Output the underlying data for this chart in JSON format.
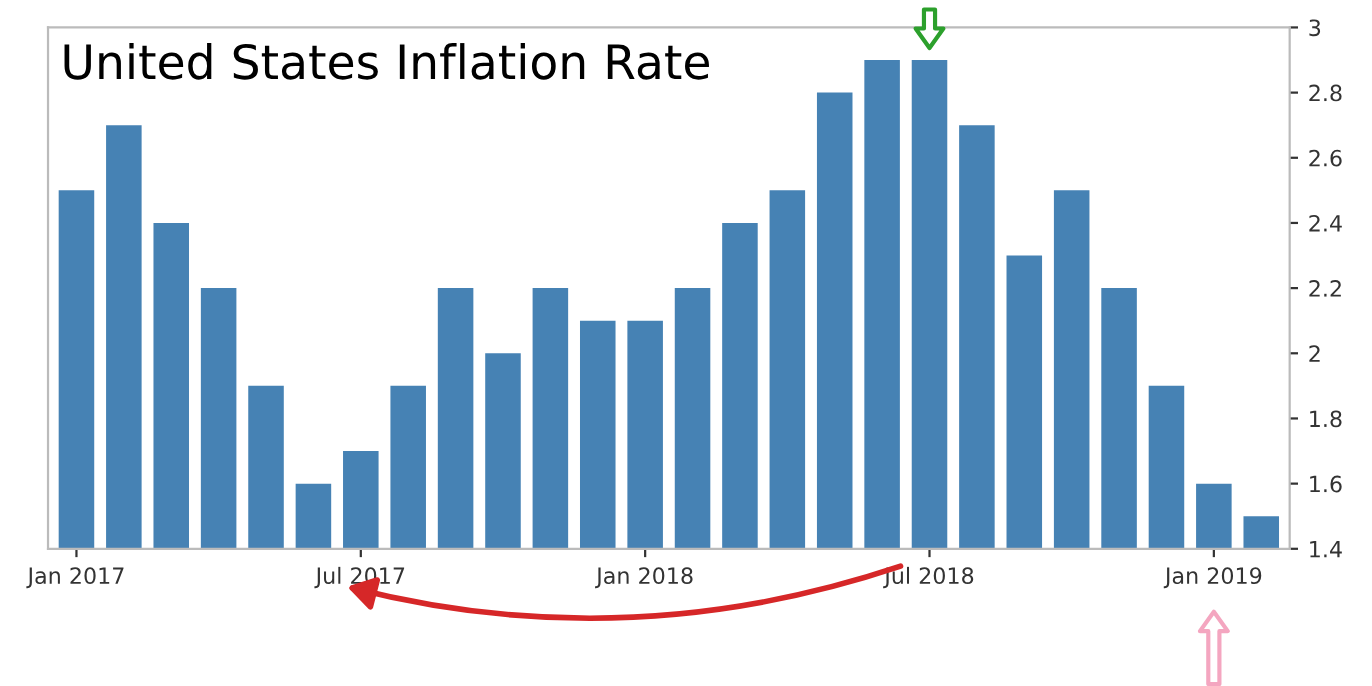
{
  "chart_data": {
    "type": "bar",
    "title": "United States Inflation Rate",
    "categories": [
      "Jan 2017",
      null,
      null,
      null,
      null,
      null,
      "Jul 2017",
      null,
      null,
      null,
      null,
      null,
      "Jan 2018",
      null,
      null,
      null,
      null,
      null,
      "Jul 2018",
      null,
      null,
      null,
      null,
      null,
      "Jan 2019",
      null
    ],
    "values": [
      2.5,
      2.7,
      2.4,
      2.2,
      1.9,
      1.6,
      1.7,
      1.9,
      2.2,
      2.0,
      2.2,
      2.1,
      2.1,
      2.2,
      2.4,
      2.5,
      2.8,
      2.9,
      2.9,
      2.7,
      2.3,
      2.5,
      2.2,
      1.9,
      1.6,
      1.5
    ],
    "color": "#4682b4",
    "ylim": [
      1.4,
      3.0
    ],
    "yticks": [
      1.4,
      1.6,
      1.8,
      2,
      2.2,
      2.4,
      2.6,
      2.8,
      3
    ],
    "grid": false
  }
}
